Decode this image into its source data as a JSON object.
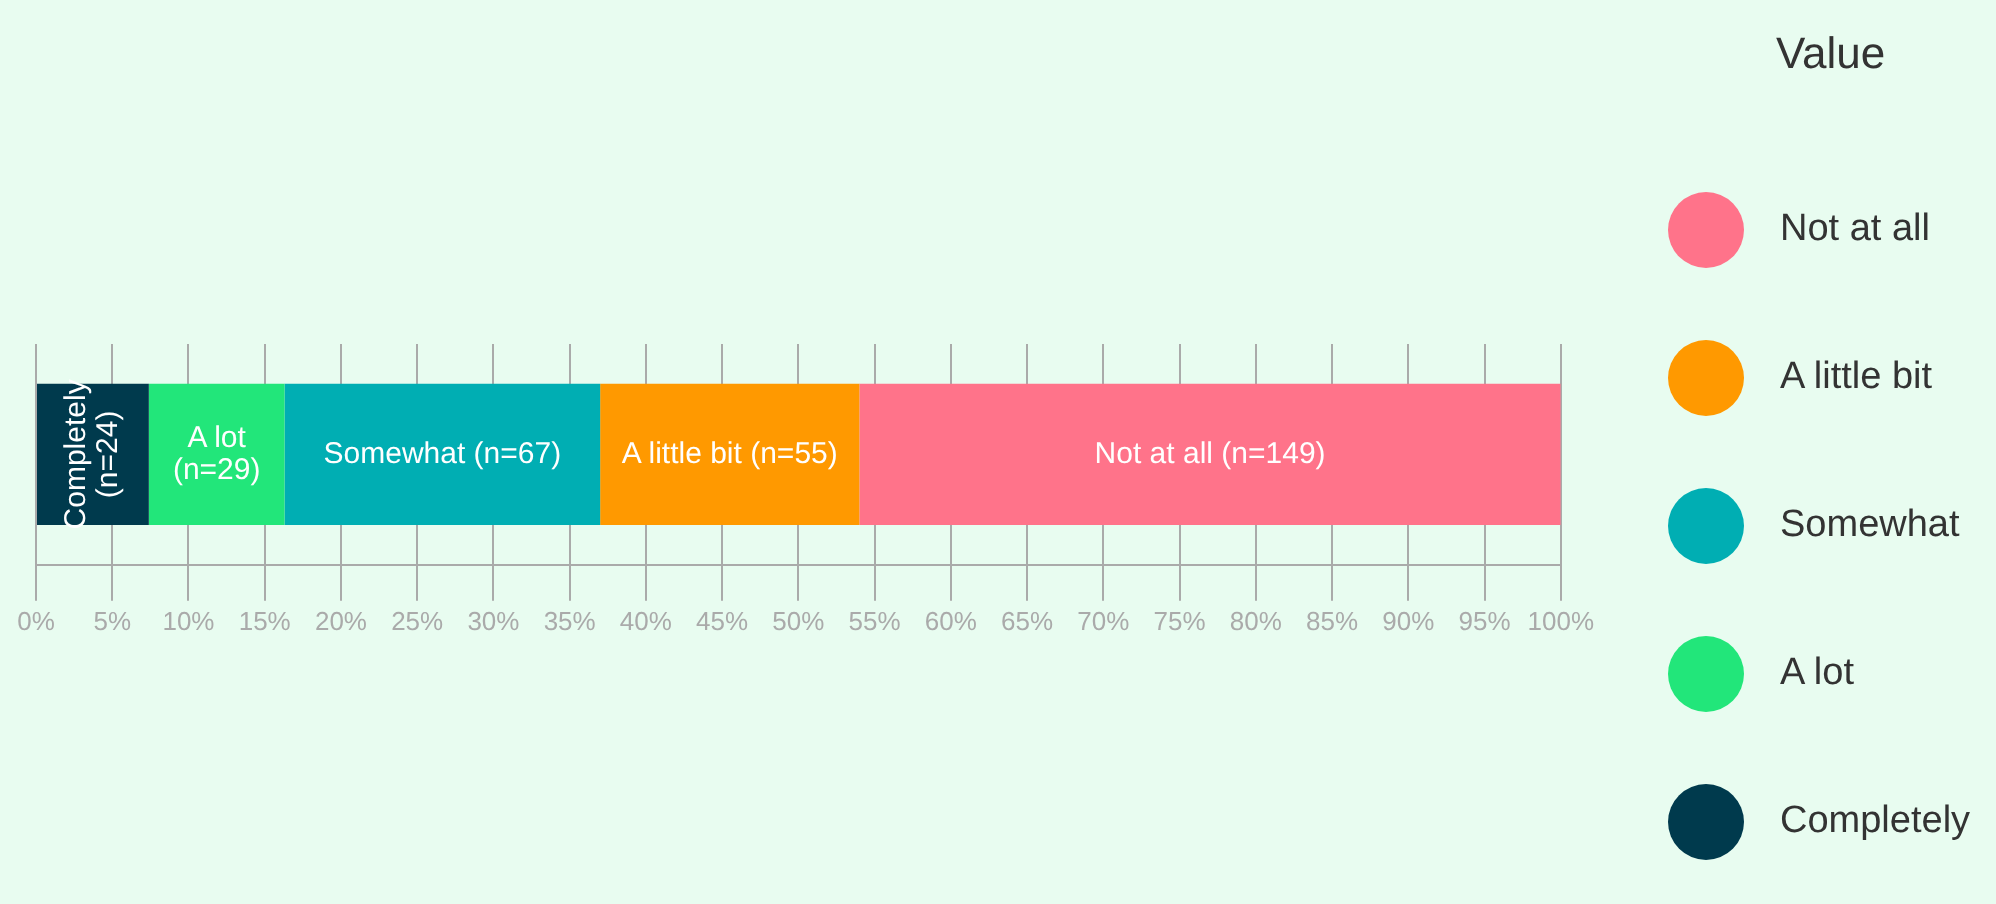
{
  "chart_data": {
    "type": "bar",
    "orientation": "horizontal",
    "stacked": true,
    "categories": [
      null
    ],
    "series": [
      {
        "name": "Completely",
        "color": "#003a4d",
        "values": [
          7.4
        ]
      },
      {
        "name": "A lot",
        "color": "#22e67a",
        "values": [
          8.9
        ]
      },
      {
        "name": "Somewhat",
        "color": "#00aeb3",
        "values": [
          20.7
        ]
      },
      {
        "name": "A little bit",
        "color": "#ff9900",
        "values": [
          17.0
        ]
      },
      {
        "name": "Not at all",
        "color": "#ff738a",
        "values": [
          46.0
        ]
      }
    ],
    "annotations": [
      "Completely (n=24)",
      "A lot (n=29)",
      "Somewhat (n=67)",
      "A little bit (n=55)",
      "Not at all (n=149)"
    ],
    "xlim": [
      0,
      100
    ],
    "xticks": [
      {
        "value": 0,
        "label": "0%"
      },
      {
        "value": 5,
        "label": "5%"
      },
      {
        "value": 10,
        "label": "10%"
      },
      {
        "value": 15,
        "label": "15%"
      },
      {
        "value": 20,
        "label": "20%"
      },
      {
        "value": 25,
        "label": "25%"
      },
      {
        "value": 30,
        "label": "30%"
      },
      {
        "value": 35,
        "label": "35%"
      },
      {
        "value": 40,
        "label": "40%"
      },
      {
        "value": 45,
        "label": "45%"
      },
      {
        "value": 50,
        "label": "50%"
      },
      {
        "value": 55,
        "label": "55%"
      },
      {
        "value": 60,
        "label": "60%"
      },
      {
        "value": 65,
        "label": "65%"
      },
      {
        "value": 70,
        "label": "70%"
      },
      {
        "value": 75,
        "label": "75%"
      },
      {
        "value": 80,
        "label": "80%"
      },
      {
        "value": 85,
        "label": "85%"
      },
      {
        "value": 90,
        "label": "90%"
      },
      {
        "value": 95,
        "label": "95%"
      },
      {
        "value": 100,
        "label": "100%"
      }
    ],
    "grid": "x",
    "legend": "right",
    "legend_title": "Value"
  }
}
